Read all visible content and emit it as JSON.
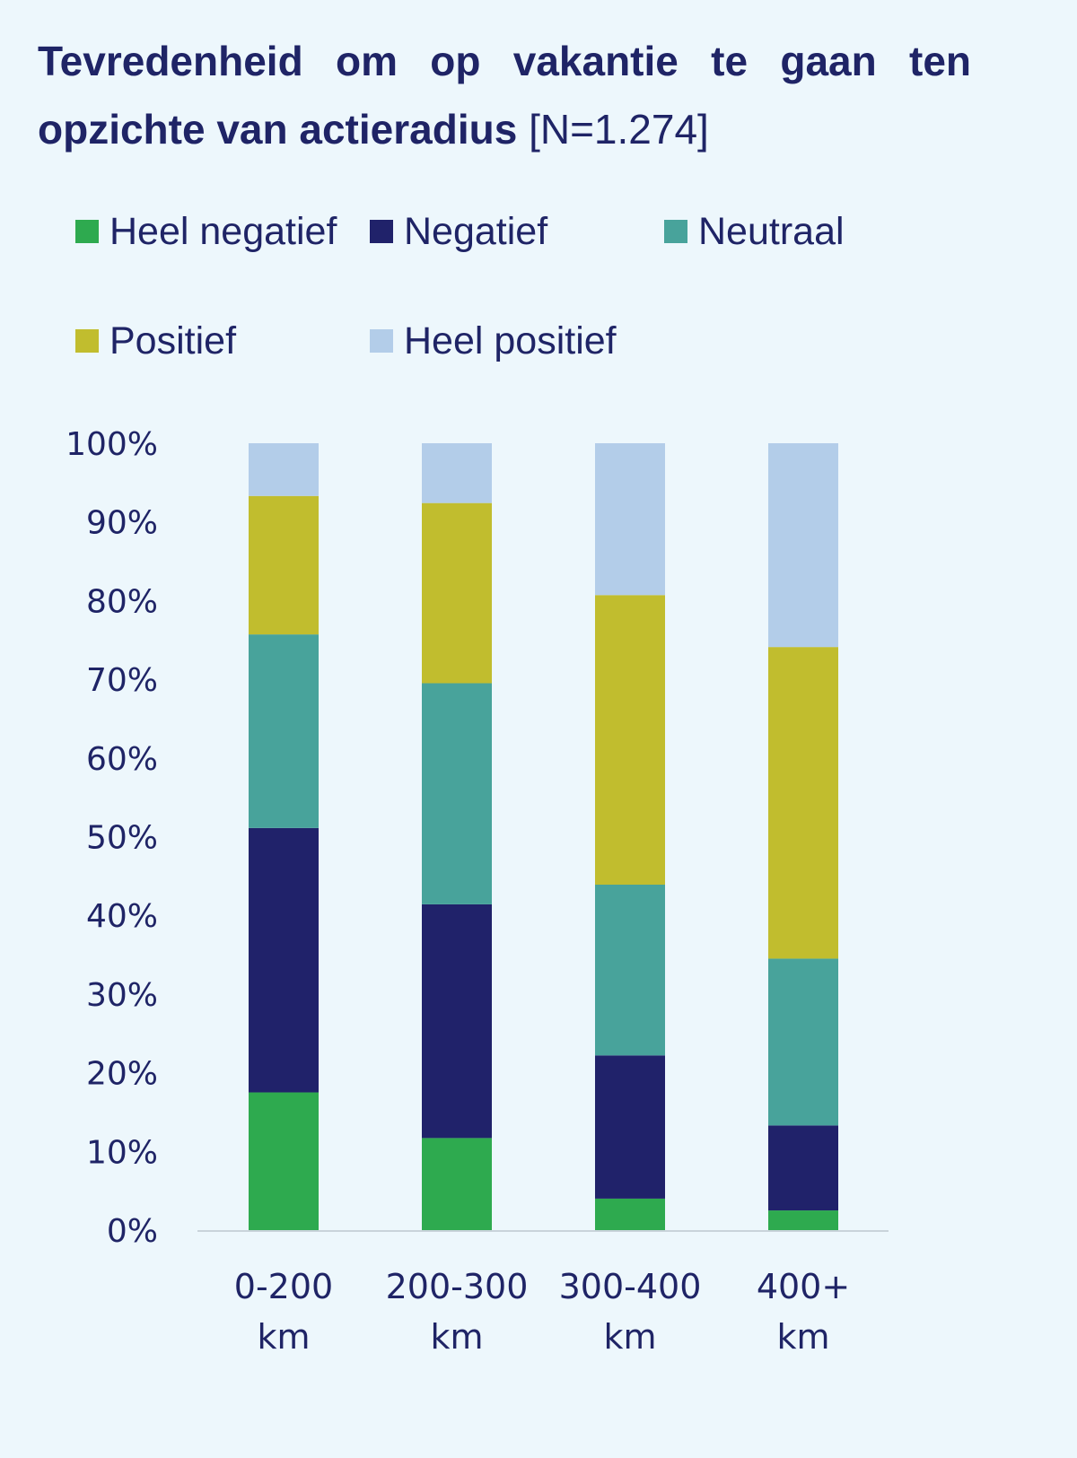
{
  "chart_data": {
    "type": "bar",
    "stacked": true,
    "title": "Tevredenheid om op vakantie te gaan ten opzichte van actieradius",
    "title_suffix": "[N=1.274]",
    "categories": [
      {
        "line1": "0-200",
        "line2": "km"
      },
      {
        "line1": "200-300",
        "line2": "km"
      },
      {
        "line1": "300-400",
        "line2": "km"
      },
      {
        "line1": "400+",
        "line2": "km"
      }
    ],
    "series": [
      {
        "name": "Heel negatief",
        "color": "#2eaa4f",
        "values": [
          17.5,
          11.7,
          4.0,
          2.5
        ]
      },
      {
        "name": "Negatief",
        "color": "#20226a",
        "values": [
          33.6,
          29.7,
          18.2,
          10.8
        ]
      },
      {
        "name": "Neutraal",
        "color": "#48a39b",
        "values": [
          24.6,
          28.1,
          21.7,
          21.2
        ]
      },
      {
        "name": "Positief",
        "color": "#c1bd2e",
        "values": [
          17.6,
          22.9,
          36.8,
          39.6
        ]
      },
      {
        "name": "Heel positief",
        "color": "#b3cde9",
        "values": [
          6.7,
          7.6,
          19.3,
          25.9
        ]
      }
    ],
    "yticks": [
      "0%",
      "10%",
      "20%",
      "30%",
      "40%",
      "50%",
      "60%",
      "70%",
      "80%",
      "90%",
      "100%"
    ],
    "ylim": [
      0,
      100
    ],
    "grid": false,
    "legend_position": "top-left"
  }
}
